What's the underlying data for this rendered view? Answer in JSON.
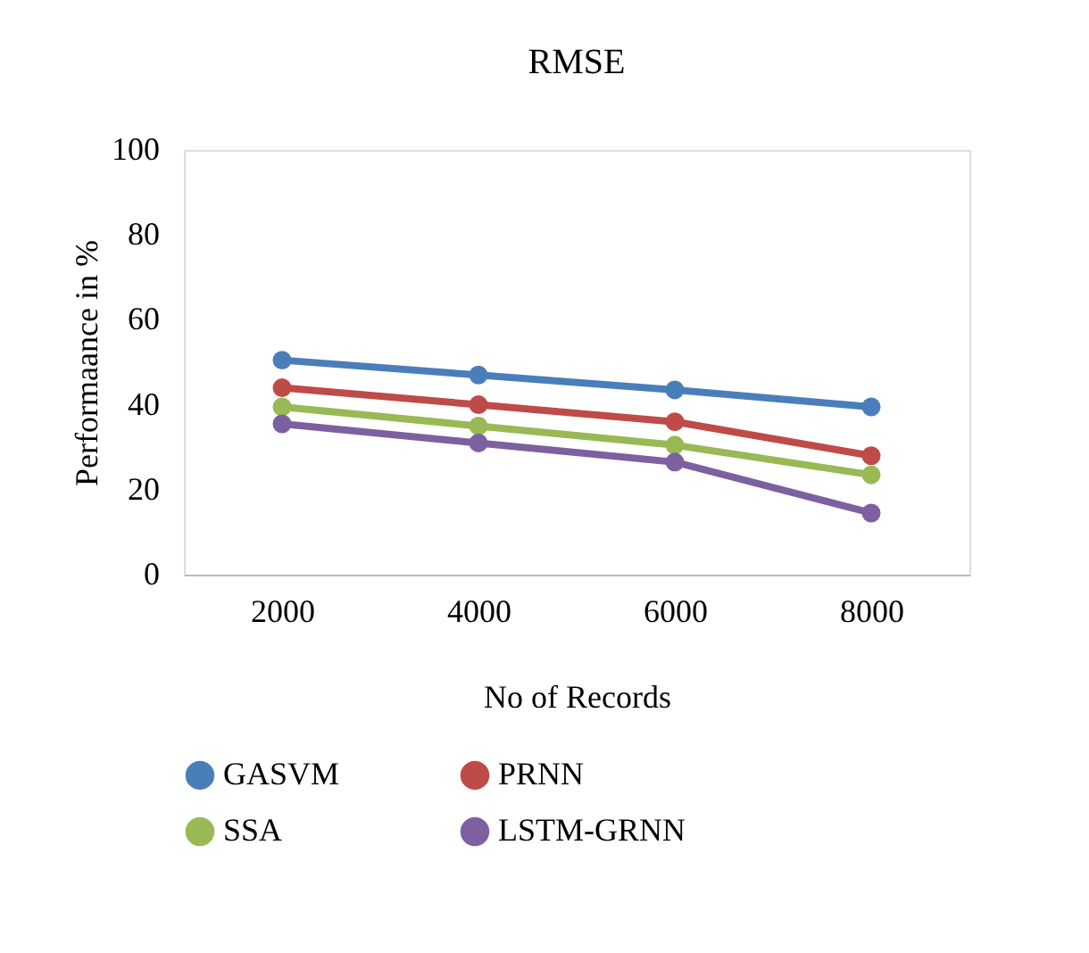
{
  "chart_data": {
    "type": "line",
    "title": "RMSE",
    "xlabel": "No of Records",
    "ylabel": "Performaance in %",
    "categories": [
      "2000",
      "4000",
      "6000",
      "8000"
    ],
    "series": [
      {
        "name": "GASVM",
        "color": "#4a7ebb",
        "values": [
          50.5,
          47,
          43.5,
          39.5
        ]
      },
      {
        "name": "PRNN",
        "color": "#be4b48",
        "values": [
          44,
          40,
          36,
          28
        ]
      },
      {
        "name": "SSA",
        "color": "#98b954",
        "values": [
          39.5,
          35,
          30.5,
          23.5
        ]
      },
      {
        "name": "LSTM-GRNN",
        "color": "#7d60a0",
        "values": [
          35.5,
          31,
          26.5,
          14.5
        ]
      }
    ],
    "ylim": [
      0,
      100
    ],
    "yticks": [
      0,
      20,
      40,
      60,
      80,
      100
    ],
    "grid": false,
    "legend": "bottom",
    "marker": "circle",
    "line_style": "solid"
  }
}
